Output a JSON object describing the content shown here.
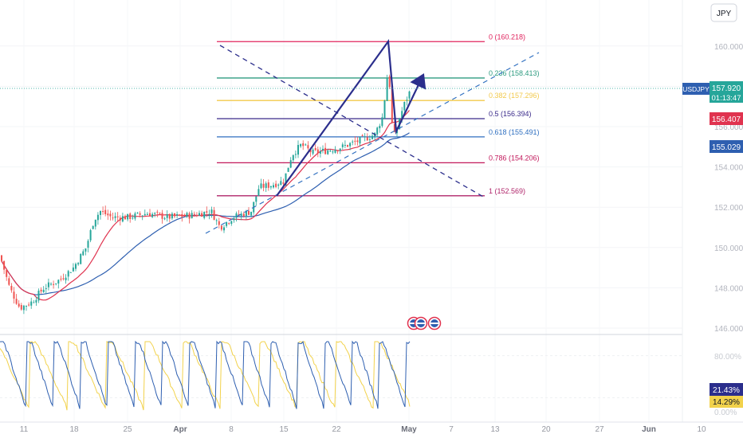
{
  "symbol": "USDJPY",
  "currency_button": "JPY",
  "price_axis": {
    "ticks": [
      "160.000",
      "158.000",
      "156.000",
      "154.000",
      "152.000",
      "150.000",
      "148.000",
      "146.000"
    ],
    "current_price": "157.920",
    "countdown": "01:13:47",
    "ma_red_value": "156.407",
    "ma_blue_value": "155.029"
  },
  "osc_axis": {
    "top_tick": "80.00%",
    "blue_value": "21.43%",
    "yellow_value": "14.29%",
    "bottom_tick": "0.00%"
  },
  "time_axis": [
    "11",
    "18",
    "25",
    "Apr",
    "8",
    "15",
    "22",
    "May",
    "7",
    "13",
    "20",
    "27",
    "Jun",
    "10"
  ],
  "fib_levels": [
    {
      "label": "0 (160.218)",
      "price": 160.218,
      "color": "#e0245e"
    },
    {
      "label": "0.236 (158.413)",
      "price": 158.413,
      "color": "#2e9c80"
    },
    {
      "label": "0.382 (157.296)",
      "price": 157.296,
      "color": "#f2c94c"
    },
    {
      "label": "0.5 (156.394)",
      "price": 156.394,
      "color": "#3a2a8a"
    },
    {
      "label": "0.618 (155.491)",
      "price": 155.491,
      "color": "#2f6fc0"
    },
    {
      "label": "0.786 (154.206)",
      "price": 154.206,
      "color": "#c2185b"
    },
    {
      "label": "1 (152.569)",
      "price": 152.569,
      "color": "#b0256a"
    }
  ],
  "colors": {
    "bull": "#26a69a",
    "bear": "#ef5350",
    "ma_red": "#e0334f",
    "ma_blue": "#2e5fb0",
    "arrow": "#2b2e8c",
    "osc_blue": "#2e5fb0",
    "osc_yellow": "#f2d24b",
    "price_line": "#26a69a"
  },
  "icons": [
    "us-flag-event-icon",
    "us-flag-event-icon",
    "us-flag-event-icon"
  ]
}
